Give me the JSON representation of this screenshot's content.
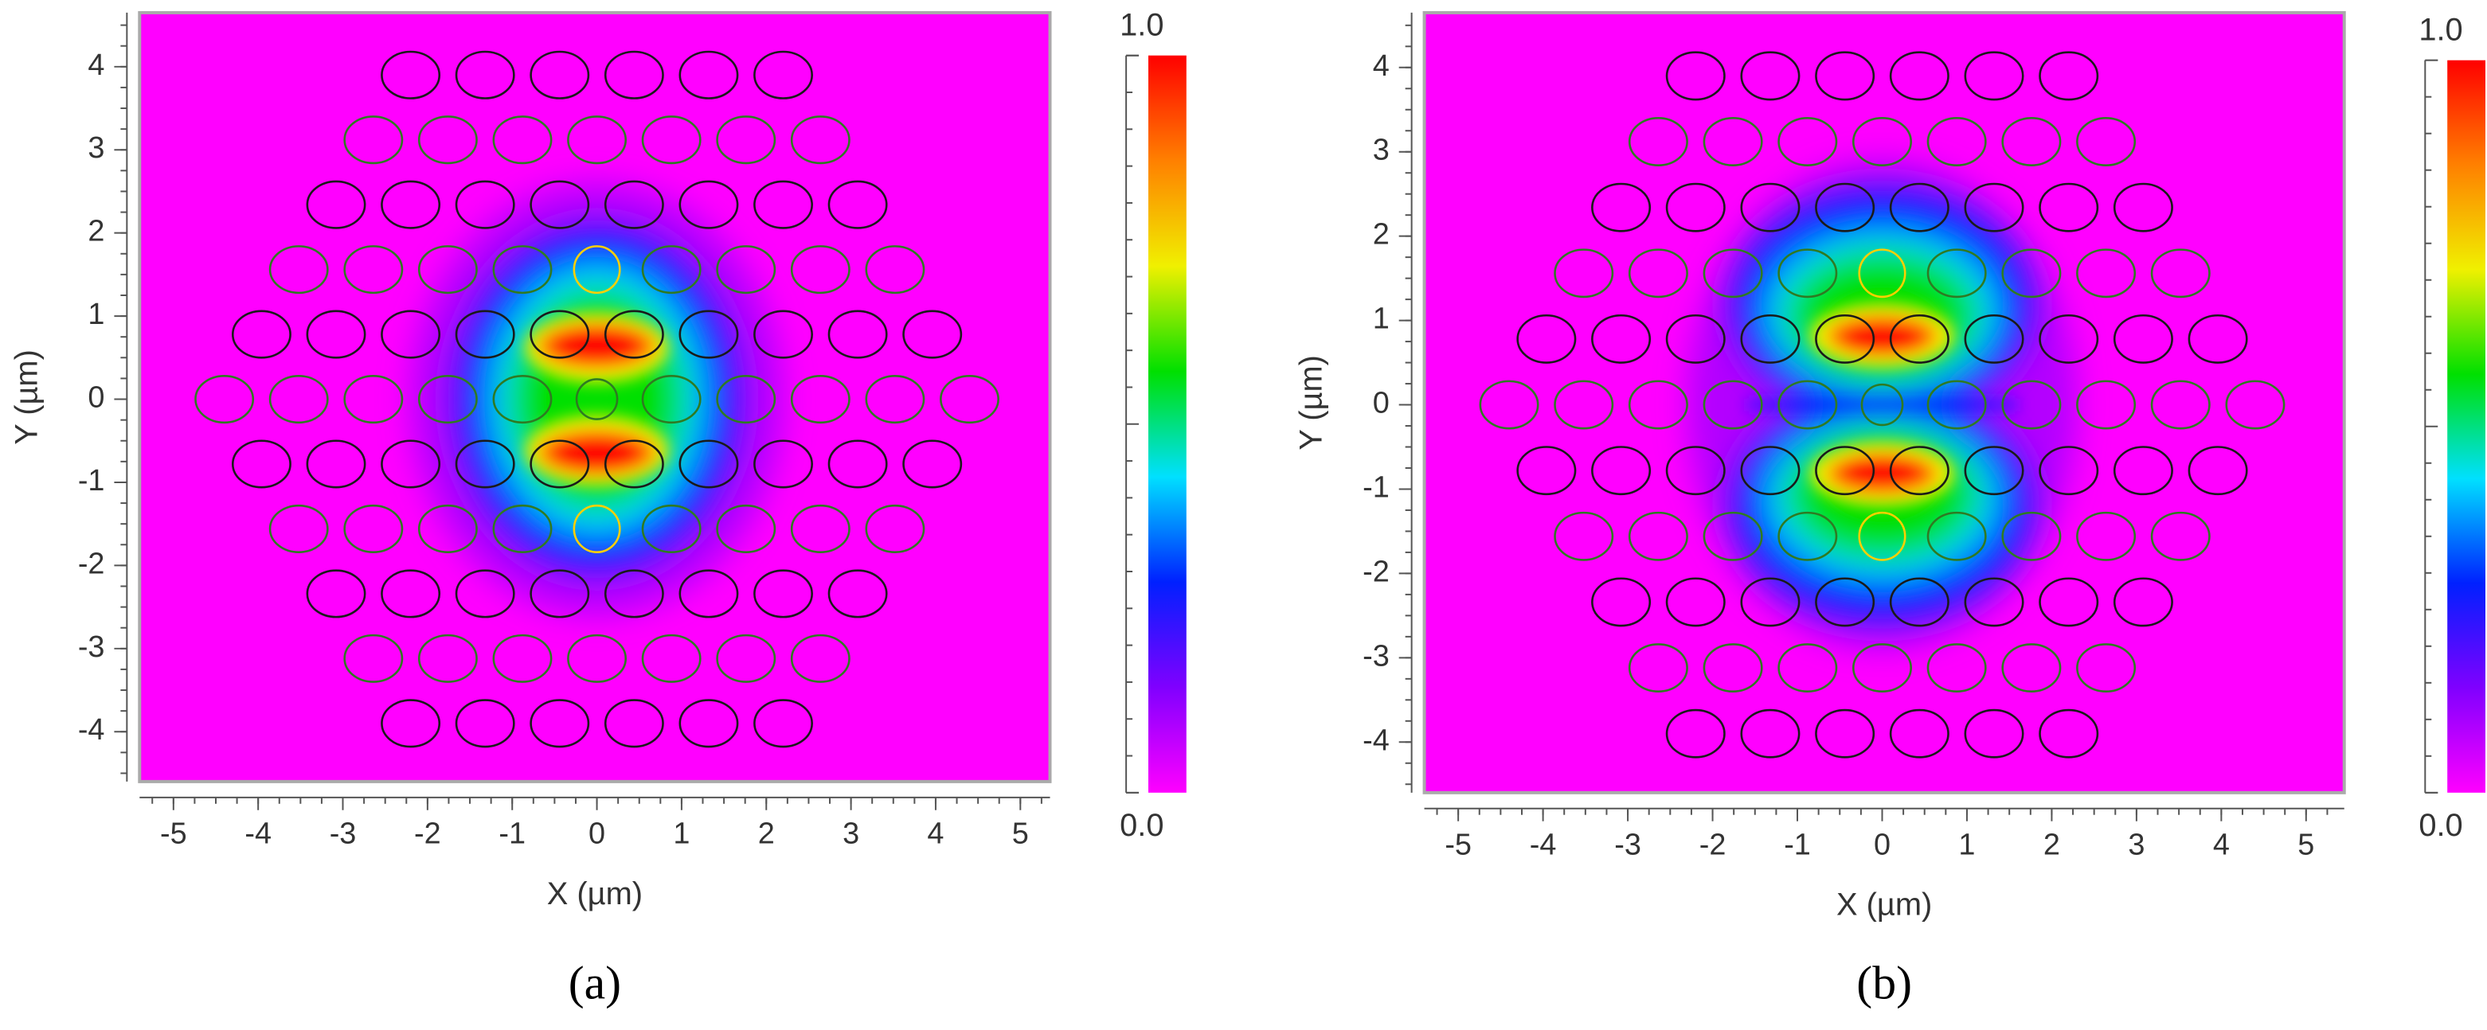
{
  "chart_data": [
    {
      "type": "heatmap",
      "xlabel": "X (µm)",
      "ylabel": "Y (µm)",
      "xlim": [
        -5.4,
        5.35
      ],
      "ylim": [
        -4.6,
        4.65
      ],
      "xticks": [
        -5,
        -4,
        -3,
        -2,
        -1,
        0,
        1,
        2,
        3,
        4,
        5
      ],
      "yticks": [
        -4,
        -3,
        -2,
        -1,
        0,
        1,
        2,
        3,
        4
      ],
      "colorbar": {
        "lim": [
          0,
          1
        ],
        "ticks": [
          {
            "value": 0,
            "label": "0.0"
          },
          {
            "value": 1,
            "label": "1.0"
          }
        ]
      },
      "colormap": [
        "#ff00ff",
        "#8000ff",
        "#0020ff",
        "#00e0ff",
        "#00e000",
        "#f0f000",
        "#ff8000",
        "#ff0000"
      ],
      "caption": "(a)"
    },
    {
      "type": "heatmap",
      "xlabel": "X (µm)",
      "ylabel": "Y (µm)",
      "xlim": [
        -5.4,
        5.45
      ],
      "ylim": [
        -4.6,
        4.65
      ],
      "xticks": [
        -5,
        -4,
        -3,
        -2,
        -1,
        0,
        1,
        2,
        3,
        4,
        5
      ],
      "yticks": [
        -4,
        -3,
        -2,
        -1,
        0,
        1,
        2,
        3,
        4
      ],
      "colorbar": {
        "lim": [
          0,
          1
        ],
        "ticks": [
          {
            "value": 0,
            "label": "0.0"
          },
          {
            "value": 1,
            "label": "1.0"
          }
        ]
      },
      "colormap": [
        "#ff00ff",
        "#8000ff",
        "#0020ff",
        "#00e0ff",
        "#00e000",
        "#f0f000",
        "#ff8000",
        "#ff0000"
      ],
      "caption": "(b)"
    }
  ]
}
